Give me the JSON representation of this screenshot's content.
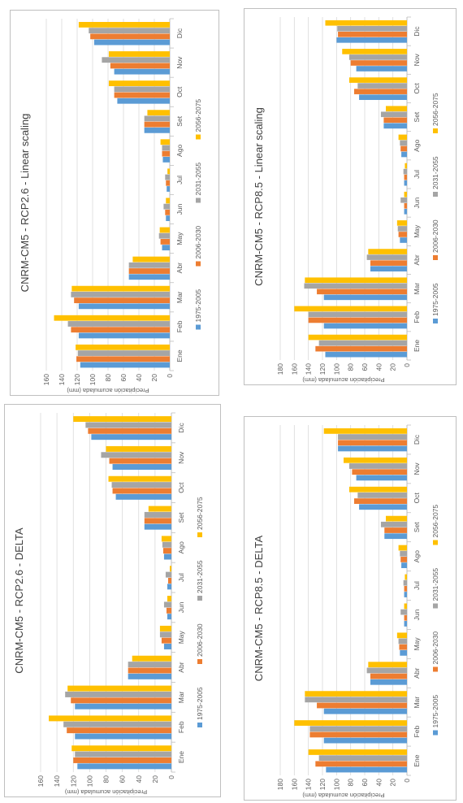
{
  "colors": {
    "s1975": "#5B9BD5",
    "s2006": "#ED7D31",
    "s2031": "#A5A5A5",
    "s2056": "#FFC000",
    "grid": "#D9D9D9"
  },
  "chart_data": [
    {
      "type": "bar",
      "orientation": "horizontal-rotated",
      "title": "CNRM-CM5 - RCP2.6 - DELTA",
      "ylabel": "Precipitación acumulada (mm)",
      "ylim": [
        0,
        160
      ],
      "yticks": [
        "0",
        "20",
        "40",
        "60",
        "80",
        "100",
        "120",
        "140",
        "160"
      ],
      "categories": [
        "Ene",
        "Feb",
        "Mar",
        "Abr",
        "May",
        "Jun",
        "Jul",
        "Ago",
        "Set",
        "Oct",
        "Nov",
        "Dic"
      ],
      "legend_position": "bottom",
      "grid": true,
      "series": [
        {
          "name": "1975-2005",
          "values": [
            115,
            118,
            118,
            53,
            9,
            5,
            5,
            9,
            33,
            68,
            72,
            98
          ]
        },
        {
          "name": "2006-2030",
          "values": [
            120,
            128,
            123,
            53,
            12,
            6,
            4,
            10,
            33,
            72,
            76,
            102
          ]
        },
        {
          "name": "2031-2055",
          "values": [
            118,
            132,
            130,
            53,
            14,
            9,
            7,
            11,
            33,
            73,
            86,
            105
          ]
        },
        {
          "name": "2056-2075",
          "values": [
            122,
            150,
            127,
            48,
            14,
            5,
            2,
            12,
            28,
            77,
            80,
            120
          ]
        }
      ]
    },
    {
      "type": "bar",
      "orientation": "horizontal-rotated",
      "title": "CNRM-CM5 - RCP2.6 - Linear scaling",
      "ylabel": "Precipitación acumulada (mm)",
      "ylim": [
        0,
        160
      ],
      "yticks": [
        "0",
        "20",
        "40",
        "60",
        "80",
        "100",
        "120",
        "140",
        "160"
      ],
      "categories": [
        "Ene",
        "Feb",
        "Mar",
        "Abr",
        "May",
        "Jun",
        "Jul",
        "Ago",
        "Set",
        "Oct",
        "Nov",
        "Dic"
      ],
      "legend_position": "bottom",
      "grid": true,
      "series": [
        {
          "name": "1975-2005",
          "values": [
            116,
            118,
            118,
            53,
            10,
            5,
            4,
            9,
            33,
            68,
            72,
            98
          ]
        },
        {
          "name": "2006-2030",
          "values": [
            121,
            128,
            124,
            53,
            12,
            6,
            5,
            10,
            33,
            72,
            77,
            103
          ]
        },
        {
          "name": "2031-2055",
          "values": [
            119,
            132,
            128,
            53,
            14,
            8,
            6,
            10,
            33,
            72,
            88,
            105
          ]
        },
        {
          "name": "2056-2075",
          "values": [
            122,
            150,
            127,
            48,
            13,
            5,
            3,
            12,
            29,
            79,
            79,
            118
          ]
        }
      ]
    },
    {
      "type": "bar",
      "orientation": "horizontal-rotated",
      "title": "CNRM-CM5 - RCP8.5 - DELTA",
      "ylabel": "Precipitación acumulada (mm)",
      "ylim": [
        0,
        180
      ],
      "yticks": [
        "0",
        "20",
        "40",
        "60",
        "80",
        "100",
        "120",
        "140",
        "160",
        "180"
      ],
      "categories": [
        "Ene",
        "Feb",
        "Mar",
        "Abr",
        "May",
        "Jun",
        "Jul",
        "Ago",
        "Set",
        "Oct",
        "Nov",
        "Dic"
      ],
      "legend_position": "bottom",
      "grid": true,
      "series": [
        {
          "name": "1975-2005",
          "values": [
            115,
            118,
            118,
            52,
            10,
            4,
            4,
            8,
            32,
            68,
            72,
            98
          ]
        },
        {
          "name": "2006-2030",
          "values": [
            130,
            138,
            128,
            52,
            11,
            4,
            4,
            9,
            32,
            75,
            78,
            98
          ]
        },
        {
          "name": "2031-2055",
          "values": [
            125,
            138,
            145,
            57,
            12,
            9,
            5,
            10,
            37,
            70,
            82,
            98
          ]
        },
        {
          "name": "2056-2075",
          "values": [
            140,
            160,
            145,
            55,
            14,
            4,
            3,
            12,
            30,
            82,
            90,
            118
          ]
        }
      ]
    },
    {
      "type": "bar",
      "orientation": "horizontal-rotated",
      "title": "CNRM-CM5 - RCP8.5 - Linear scaling",
      "ylabel": "Precipitación acumulada (mm)",
      "ylim": [
        0,
        180
      ],
      "yticks": [
        "0",
        "20",
        "40",
        "60",
        "80",
        "100",
        "120",
        "140",
        "160",
        "180"
      ],
      "categories": [
        "Ene",
        "Feb",
        "Mar",
        "Abr",
        "May",
        "Jun",
        "Jul",
        "Ago",
        "Set",
        "Oct",
        "Nov",
        "Dic"
      ],
      "legend_position": "bottom",
      "grid": true,
      "series": [
        {
          "name": "1975-2005",
          "values": [
            116,
            118,
            118,
            52,
            10,
            4,
            4,
            8,
            33,
            68,
            72,
            100
          ]
        },
        {
          "name": "2006-2030",
          "values": [
            130,
            140,
            128,
            52,
            12,
            4,
            4,
            9,
            33,
            75,
            80,
            98
          ]
        },
        {
          "name": "2031-2055",
          "values": [
            125,
            140,
            146,
            57,
            13,
            9,
            5,
            10,
            37,
            70,
            82,
            99
          ]
        },
        {
          "name": "2056-2075",
          "values": [
            140,
            160,
            145,
            55,
            14,
            4,
            3,
            12,
            30,
            82,
            92,
            116
          ]
        }
      ]
    }
  ]
}
